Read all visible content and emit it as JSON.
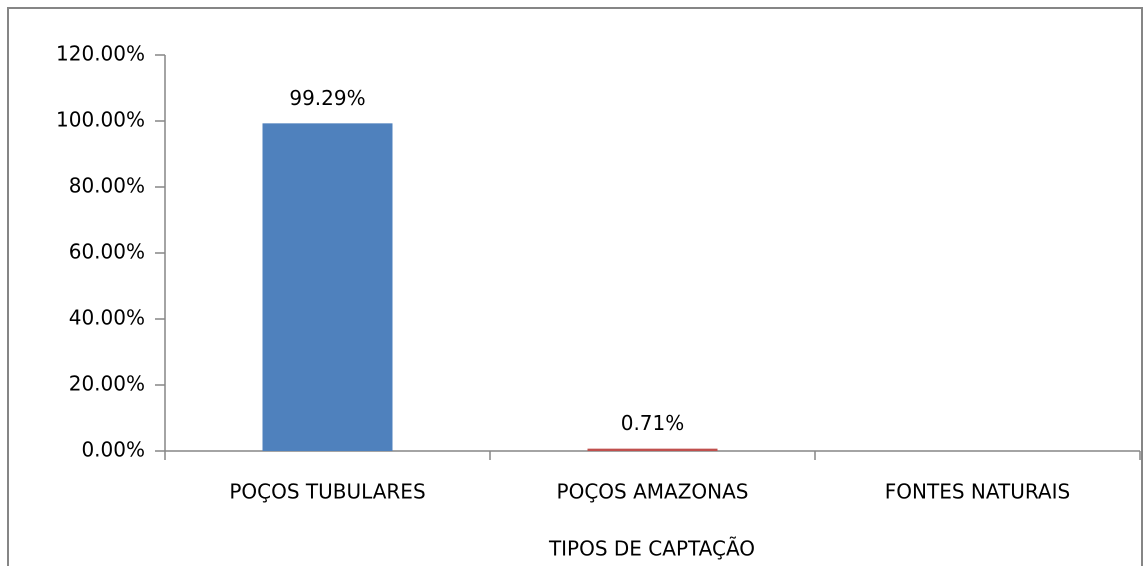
{
  "chart_data": {
    "type": "bar",
    "x_label": "TIPOS DE CAPTAÇÃO",
    "categories": [
      "POÇOS TUBULARES",
      "POÇOS AMAZONAS",
      "FONTES NATURAIS"
    ],
    "values": [
      99.29,
      0.71,
      null
    ],
    "value_labels": [
      "99.29%",
      "0.71%",
      null
    ],
    "colors": [
      "#4f81bd",
      "#c0504d",
      "#9bbb59"
    ],
    "ylim": [
      0,
      120
    ],
    "yticks": [
      {
        "value": 0,
        "label": "0.00%"
      },
      {
        "value": 20,
        "label": "20.00%"
      },
      {
        "value": 40,
        "label": "40.00%"
      },
      {
        "value": 60,
        "label": "60.00%"
      },
      {
        "value": 80,
        "label": "80.00%"
      },
      {
        "value": 100,
        "label": "100.00%"
      },
      {
        "value": 120,
        "label": "120.00%"
      }
    ],
    "grid": false
  }
}
